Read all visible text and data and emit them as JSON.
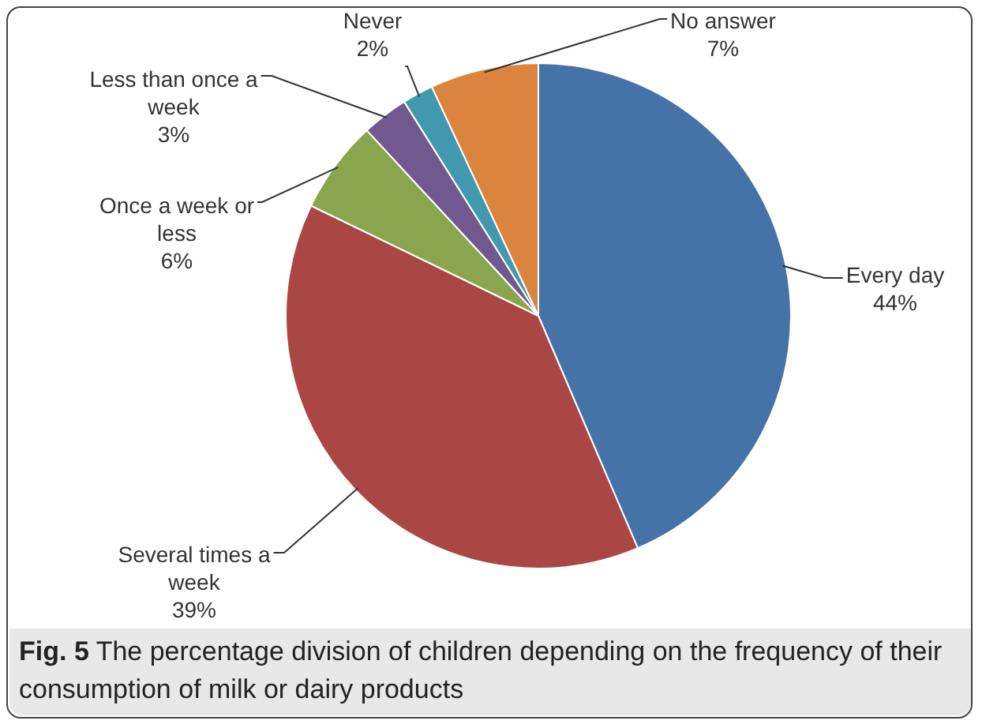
{
  "chart_data": {
    "type": "pie",
    "categories": [
      "Every day",
      "Several times a week",
      "Once a week or less",
      "Less than once a week",
      "Never",
      "No answer"
    ],
    "values": [
      44,
      39,
      6,
      3,
      2,
      7
    ],
    "colors": [
      "#4572a7",
      "#aa4643",
      "#89a54e",
      "#71588f",
      "#4198af",
      "#db843d"
    ],
    "value_labels": [
      "44%",
      "39%",
      "6%",
      "3%",
      "2%",
      "7%"
    ],
    "legend": false,
    "annotations": [
      "Fig. 5 The percentage division of children depending on the frequency of their consumption of milk or dairy products"
    ]
  }
}
